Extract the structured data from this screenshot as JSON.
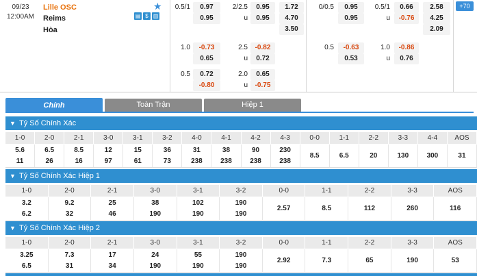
{
  "match": {
    "date": "09/23",
    "time": "12:00AM",
    "home": "Lille OSC",
    "away": "Reims",
    "draw": "Hòa",
    "more": "+70"
  },
  "odds": {
    "ft_hdp": {
      "line": "0.5/1",
      "h": "0.97",
      "a": "0.95"
    },
    "ft_ou": {
      "line": "2/2.5",
      "o": "0.95",
      "u_label": "u",
      "u": "0.95"
    },
    "ft_1x2": {
      "h": "1.72",
      "a": "4.70",
      "d": "3.50"
    },
    "ft_hdp2": {
      "line": "1.0",
      "h": "-0.73",
      "a": "0.65"
    },
    "ft_ou2": {
      "line": "2.5",
      "o": "-0.82",
      "u_label": "u",
      "u": "0.72"
    },
    "ft_hdp3": {
      "line": "0.5",
      "h": "0.72",
      "a": "-0.80"
    },
    "ft_ou3": {
      "line": "2.0",
      "o": "0.65",
      "u_label": "u",
      "u": "-0.75"
    },
    "h1_hdp": {
      "line": "0/0.5",
      "h": "0.95",
      "a": "0.95"
    },
    "h1_ou": {
      "line": "0.5/1",
      "o": "0.66",
      "u_label": "u",
      "u": "-0.76"
    },
    "h1_1x2": {
      "h": "2.58",
      "a": "4.25",
      "d": "2.09"
    },
    "h1_hdp2": {
      "line": "0.5",
      "h": "-0.63",
      "a": "0.53"
    },
    "h1_ou2": {
      "line": "1.0",
      "o": "-0.86",
      "u_label": "u",
      "u": "0.76"
    }
  },
  "tabs": [
    "Chính",
    "Toàn Trận",
    "Hiệp 1"
  ],
  "sections": [
    {
      "title": "Tỷ Số Chính Xác",
      "headers": [
        "1-0",
        "2-0",
        "2-1",
        "3-0",
        "3-1",
        "3-2",
        "4-0",
        "4-1",
        "4-2",
        "4-3",
        "0-0",
        "1-1",
        "2-2",
        "3-3",
        "4-4",
        "AOS"
      ],
      "top": [
        "5.6",
        "6.5",
        "8.5",
        "12",
        "15",
        "36",
        "31",
        "38",
        "90",
        "230",
        "8.5",
        "6.5",
        "20",
        "130",
        "300",
        "31"
      ],
      "bottom": [
        "11",
        "26",
        "16",
        "97",
        "61",
        "73",
        "238",
        "238",
        "238",
        "238",
        "",
        "",
        "",
        "",
        "",
        ""
      ]
    },
    {
      "title": "Tỷ Số Chính Xác Hiệp 1",
      "headers": [
        "1-0",
        "2-0",
        "2-1",
        "3-0",
        "3-1",
        "3-2",
        "0-0",
        "1-1",
        "2-2",
        "3-3",
        "AOS"
      ],
      "top": [
        "3.2",
        "9.2",
        "25",
        "38",
        "102",
        "190",
        "2.57",
        "8.5",
        "112",
        "260",
        "116"
      ],
      "bottom": [
        "6.2",
        "32",
        "46",
        "190",
        "190",
        "190",
        "",
        "",
        "",
        "",
        ""
      ]
    },
    {
      "title": "Tỷ Số Chính Xác Hiệp 2",
      "headers": [
        "1-0",
        "2-0",
        "2-1",
        "3-0",
        "3-1",
        "3-2",
        "0-0",
        "1-1",
        "2-2",
        "3-3",
        "AOS"
      ],
      "top": [
        "3.25",
        "7.3",
        "17",
        "24",
        "55",
        "190",
        "2.92",
        "7.3",
        "65",
        "190",
        "53"
      ],
      "bottom": [
        "6.5",
        "31",
        "34",
        "190",
        "190",
        "190",
        "",
        "",
        "",
        "",
        ""
      ]
    }
  ]
}
